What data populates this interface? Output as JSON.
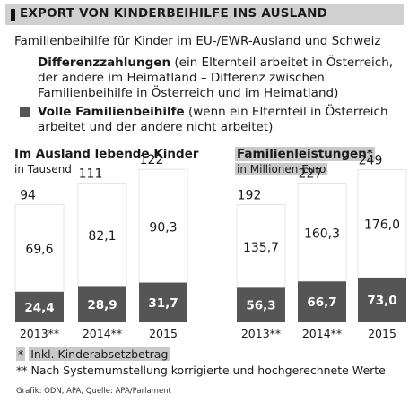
{
  "header": {
    "title": "EXPORT VON KINDERBEIHILFE INS AUSLAND",
    "subtitle": "Familienbeihilfe für Kinder im EU-/EWR-Ausland und Schweiz"
  },
  "legend": {
    "differenz": {
      "label": "Differenzzahlungen",
      "description": " (ein Elternteil arbeitet in Österreich, der andere im Heimatland – Differenz zwischen Familienbeihilfe in Österreich und im Heimatland)"
    },
    "voll": {
      "label": "Volle Familienbeihilfe",
      "description": " (wenn ein Elternteil in Österreich arbeitet und der andere nicht arbeitet)"
    }
  },
  "colors": {
    "full": "#555555",
    "difference": "#ffffff",
    "highlight": "#c9c9c9"
  },
  "chart_data": [
    {
      "type": "bar",
      "stacked": true,
      "title": "Im Ausland lebende Kinder",
      "unit": "in Tausend",
      "categories": [
        "2013**",
        "2014**",
        "2015"
      ],
      "totals": [
        "94",
        "111",
        "122"
      ],
      "series": [
        {
          "name": "Volle Familienbeihilfe",
          "values": [
            24.4,
            28.9,
            31.7
          ],
          "labels": [
            "24,4",
            "28,9",
            "31,7"
          ]
        },
        {
          "name": "Differenzzahlungen",
          "values": [
            69.6,
            82.1,
            90.3
          ],
          "labels": [
            "69,6",
            "82,1",
            "90,3"
          ]
        }
      ]
    },
    {
      "type": "bar",
      "stacked": true,
      "title": "Familienleistungen*",
      "unit": "in Millionen Euro",
      "categories": [
        "2013**",
        "2014**",
        "2015"
      ],
      "totals": [
        "192",
        "227",
        "249"
      ],
      "series": [
        {
          "name": "Volle Familienbeihilfe",
          "values": [
            56.3,
            66.7,
            73.0
          ],
          "labels": [
            "56,3",
            "66,7",
            "73,0"
          ]
        },
        {
          "name": "Differenzzahlungen",
          "values": [
            135.7,
            160.3,
            176.0
          ],
          "labels": [
            "135,7",
            "160,3",
            "176,0"
          ]
        }
      ]
    }
  ],
  "footnotes": {
    "star_marker": "*",
    "star_text": "Inkl. Kinderabsetzbetrag",
    "double_star": "** Nach Systemumstellung korrigierte und hochgerechnete Werte"
  },
  "source": "Grafik: ODN, APA, Quelle: APA/Parlament"
}
